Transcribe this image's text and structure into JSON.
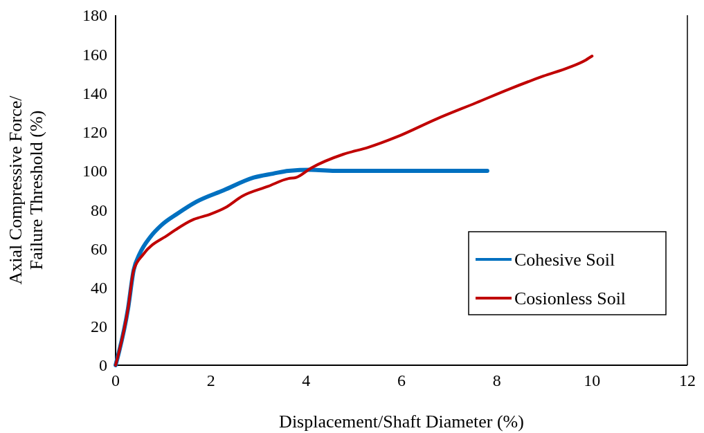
{
  "chart_data": {
    "type": "line",
    "xlabel": "Displacement/Shaft Diameter (%)",
    "ylabel": "Axial Compressive Force/Failure Threshold (%)",
    "xlim": [
      0,
      12
    ],
    "xticks": [
      0,
      2,
      4,
      6,
      8,
      10,
      12
    ],
    "ylim": [
      0,
      180
    ],
    "yticks": [
      0,
      20,
      40,
      60,
      80,
      100,
      120,
      140,
      160,
      180
    ],
    "grid": false,
    "legend": "bottom right",
    "marker": "none",
    "line_style": "solid",
    "series": [
      {
        "name": "Cohesive Soil",
        "color": "#0070c0",
        "x": [
          0,
          0.26,
          0.38,
          0.5,
          0.73,
          0.96,
          1.3,
          1.69,
          2.27,
          2.9,
          3.3,
          3.63,
          4.1,
          4.6,
          5.5,
          6.5,
          7.8
        ],
        "values": [
          0,
          29,
          49,
          57,
          66,
          72,
          78,
          84,
          90,
          96.5,
          98.5,
          100,
          100.5,
          100,
          100,
          100,
          100
        ]
      },
      {
        "name": "Cosionless Soil",
        "color": "#c00000",
        "x": [
          0,
          0.26,
          0.38,
          0.58,
          1.1,
          1.64,
          1.98,
          2.3,
          2.66,
          3.2,
          3.63,
          3.78,
          4.11,
          4.78,
          5.3,
          5.9,
          6.74,
          7.57,
          8.26,
          8.98,
          9.5,
          9.87,
          10
        ],
        "values": [
          0,
          29,
          49,
          57,
          67,
          75,
          77.6,
          81,
          87,
          92,
          96,
          96.5,
          101.5,
          108.5,
          112,
          117.4,
          126.7,
          135,
          142,
          148.7,
          153,
          157,
          159
        ]
      }
    ]
  }
}
